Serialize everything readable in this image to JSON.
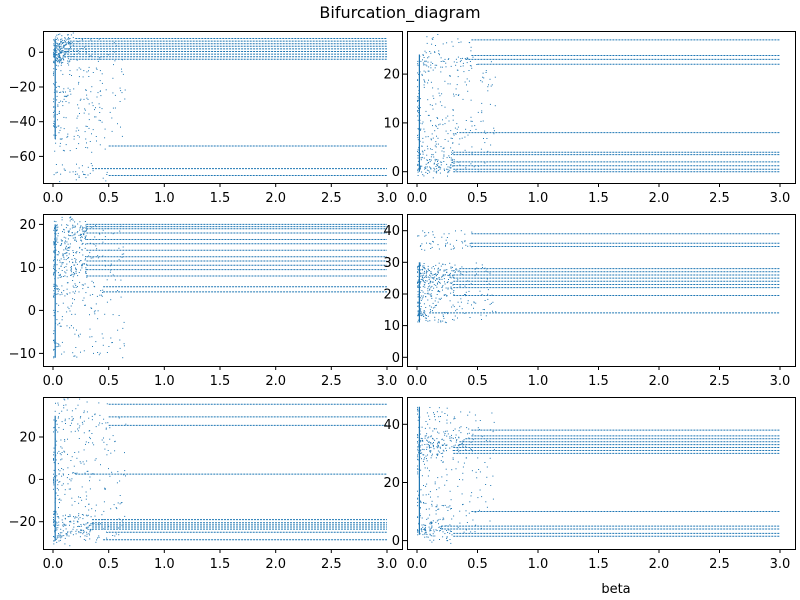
{
  "figure": {
    "title": "Bifurcation_diagram",
    "xlabel": "beta"
  },
  "colors": {
    "series": "#1f77b4",
    "axes": "#000000",
    "background": "#ffffff"
  },
  "chart_data": [
    {
      "type": "scatter",
      "panel": "top-left",
      "xlim": [
        0,
        3.0
      ],
      "ylim": [
        -73,
        10
      ],
      "xticks": [
        0.0,
        0.5,
        1.0,
        1.5,
        2.0,
        2.5,
        3.0
      ],
      "xtick_labels": [
        "0.0",
        "0.5",
        "1.0",
        "1.5",
        "2.0",
        "2.5",
        "3.0"
      ],
      "yticks": [
        0,
        -20,
        -40,
        -60
      ],
      "ytick_labels": [
        "0",
        "−20",
        "−40",
        "−60"
      ],
      "transient_range": [
        -50,
        8
      ],
      "branches": [
        {
          "start": 0.2,
          "value": 8
        },
        {
          "start": 0.15,
          "value": 6.5
        },
        {
          "start": 0.15,
          "value": 5
        },
        {
          "start": 0.15,
          "value": 3.5
        },
        {
          "start": 0.1,
          "value": 2
        },
        {
          "start": 0.1,
          "value": 0.5
        },
        {
          "start": 0.1,
          "value": -1
        },
        {
          "start": 0.1,
          "value": -2.5
        },
        {
          "start": 0.15,
          "value": -4
        },
        {
          "start": 0.5,
          "value": -54
        },
        {
          "start": 0.35,
          "value": -67
        },
        {
          "start": 0.5,
          "value": -71
        }
      ]
    },
    {
      "type": "scatter",
      "panel": "top-right",
      "xlim": [
        0,
        3.0
      ],
      "ylim": [
        -1.5,
        28
      ],
      "xticks": [
        0.0,
        0.5,
        1.0,
        1.5,
        2.0,
        2.5,
        3.0
      ],
      "xtick_labels": [
        "0.0",
        "0.5",
        "1.0",
        "1.5",
        "2.0",
        "2.5",
        "3.0"
      ],
      "yticks": [
        0,
        10,
        20
      ],
      "ytick_labels": [
        "0",
        "10",
        "20"
      ],
      "transient_range": [
        0,
        24
      ],
      "branches": [
        {
          "start": 0.45,
          "value": 27
        },
        {
          "start": 0.45,
          "value": 23.8
        },
        {
          "start": 0.4,
          "value": 23
        },
        {
          "start": 0.5,
          "value": 22
        },
        {
          "start": 0.35,
          "value": 8
        },
        {
          "start": 0.3,
          "value": 4
        },
        {
          "start": 0.3,
          "value": 3.5
        },
        {
          "start": 0.3,
          "value": 2
        },
        {
          "start": 0.3,
          "value": 1.2
        },
        {
          "start": 0.3,
          "value": 0.5
        },
        {
          "start": 0.3,
          "value": 0
        }
      ]
    },
    {
      "type": "scatter",
      "panel": "middle-left",
      "xlim": [
        0,
        3.0
      ],
      "ylim": [
        -12,
        21.5
      ],
      "xticks": [
        0.0,
        0.5,
        1.0,
        1.5,
        2.0,
        2.5,
        3.0
      ],
      "xtick_labels": [
        "0.0",
        "0.5",
        "1.0",
        "1.5",
        "2.0",
        "2.5",
        "3.0"
      ],
      "yticks": [
        20,
        10,
        0,
        -10
      ],
      "ytick_labels": [
        "20",
        "10",
        "0",
        "−10"
      ],
      "transient_range": [
        -11,
        20
      ],
      "branches": [
        {
          "start": 0.3,
          "value": 20
        },
        {
          "start": 0.3,
          "value": 19.5
        },
        {
          "start": 0.3,
          "value": 19
        },
        {
          "start": 0.3,
          "value": 18
        },
        {
          "start": 0.3,
          "value": 16.5
        },
        {
          "start": 0.3,
          "value": 15.5
        },
        {
          "start": 0.3,
          "value": 14
        },
        {
          "start": 0.3,
          "value": 12.5
        },
        {
          "start": 0.3,
          "value": 11.5
        },
        {
          "start": 0.3,
          "value": 10.5
        },
        {
          "start": 0.3,
          "value": 9.5
        },
        {
          "start": 0.3,
          "value": 8
        },
        {
          "start": 0.45,
          "value": 5.5
        },
        {
          "start": 0.45,
          "value": 4.3
        }
      ]
    },
    {
      "type": "scatter",
      "panel": "middle-right",
      "xlim": [
        0,
        3.0
      ],
      "ylim": [
        -1.5,
        44
      ],
      "xticks": [
        0.0,
        0.5,
        1.0,
        1.5,
        2.0,
        2.5,
        3.0
      ],
      "xtick_labels": [
        "0.0",
        "0.5",
        "1.0",
        "1.5",
        "2.0",
        "2.5",
        "3.0"
      ],
      "yticks": [
        0,
        10,
        20,
        30,
        40
      ],
      "ytick_labels": [
        "0",
        "10",
        "20",
        "30",
        "40"
      ],
      "transient_range": [
        11,
        30
      ],
      "branches": [
        {
          "start": 0.45,
          "value": 39
        },
        {
          "start": 0.45,
          "value": 36
        },
        {
          "start": 0.45,
          "value": 35
        },
        {
          "start": 0.35,
          "value": 28
        },
        {
          "start": 0.35,
          "value": 27
        },
        {
          "start": 0.3,
          "value": 26
        },
        {
          "start": 0.3,
          "value": 25
        },
        {
          "start": 0.3,
          "value": 24
        },
        {
          "start": 0.3,
          "value": 23
        },
        {
          "start": 0.3,
          "value": 22
        },
        {
          "start": 0.3,
          "value": 19.5
        },
        {
          "start": 0.1,
          "value": 14
        }
      ]
    },
    {
      "type": "scatter",
      "panel": "bottom-left",
      "xlim": [
        0,
        3.0
      ],
      "ylim": [
        -31,
        37
      ],
      "xticks": [
        0.0,
        0.5,
        1.0,
        1.5,
        2.0,
        2.5,
        3.0
      ],
      "xtick_labels": [
        "0.0",
        "0.5",
        "1.0",
        "1.5",
        "2.0",
        "2.5",
        "3.0"
      ],
      "yticks": [
        20,
        0,
        -20
      ],
      "ytick_labels": [
        "20",
        "0",
        "−20"
      ],
      "transient_range": [
        -29,
        30
      ],
      "branches": [
        {
          "start": 0.5,
          "value": 35.5
        },
        {
          "start": 0.5,
          "value": 29.5
        },
        {
          "start": 0.5,
          "value": 25.5
        },
        {
          "start": 0.2,
          "value": 2.5
        },
        {
          "start": 0.35,
          "value": -19
        },
        {
          "start": 0.35,
          "value": -20.5
        },
        {
          "start": 0.35,
          "value": -21.5
        },
        {
          "start": 0.35,
          "value": -22.5
        },
        {
          "start": 0.35,
          "value": -23.5
        },
        {
          "start": 0.5,
          "value": -25
        },
        {
          "start": 0.45,
          "value": -28.5
        }
      ]
    },
    {
      "type": "scatter",
      "panel": "bottom-right",
      "xlim": [
        0,
        3.0
      ],
      "ylim": [
        -1.5,
        48
      ],
      "xticks": [
        0.0,
        0.5,
        1.0,
        1.5,
        2.0,
        2.5,
        3.0
      ],
      "xtick_labels": [
        "0.0",
        "0.5",
        "1.0",
        "1.5",
        "2.0",
        "2.5",
        "3.0"
      ],
      "yticks": [
        0,
        20,
        40
      ],
      "ytick_labels": [
        "0",
        "20",
        "40"
      ],
      "transient_range": [
        2,
        46
      ],
      "branches": [
        {
          "start": 0.45,
          "value": 38
        },
        {
          "start": 0.45,
          "value": 36
        },
        {
          "start": 0.4,
          "value": 35
        },
        {
          "start": 0.35,
          "value": 34
        },
        {
          "start": 0.35,
          "value": 33
        },
        {
          "start": 0.3,
          "value": 32
        },
        {
          "start": 0.3,
          "value": 31
        },
        {
          "start": 0.3,
          "value": 30
        },
        {
          "start": 0.45,
          "value": 10
        },
        {
          "start": 0.2,
          "value": 5
        },
        {
          "start": 0.2,
          "value": 4
        },
        {
          "start": 0.3,
          "value": 2.5
        },
        {
          "start": 0.3,
          "value": 1.5
        }
      ]
    }
  ]
}
